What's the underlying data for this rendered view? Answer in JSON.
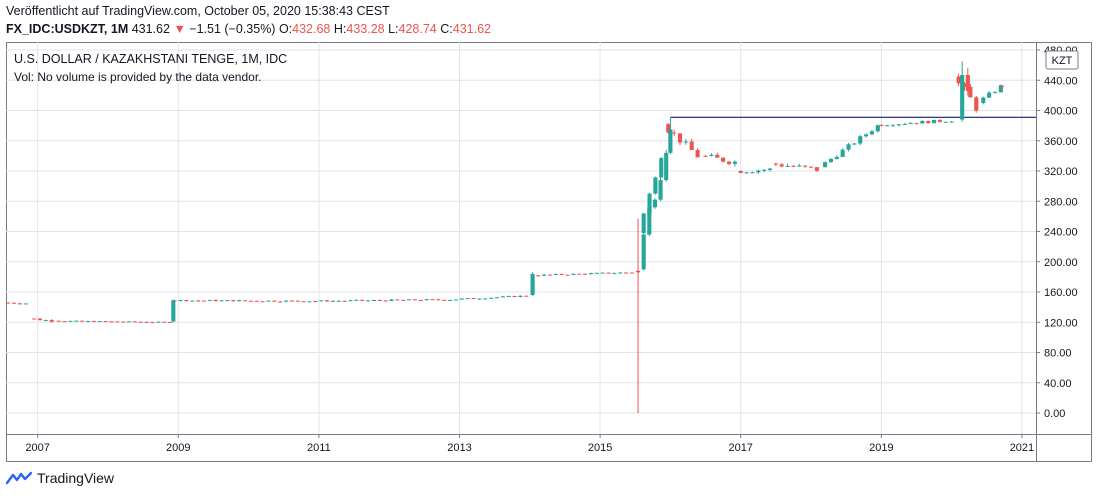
{
  "header": {
    "published": "Veröffentlicht auf TradingView.com, October 05, 2020 15:38:43 CEST",
    "symbol": "FX_IDC:USDKZT, 1M",
    "last": "431.62",
    "change_arrow": "▼",
    "change": "−1.51 (−0.35%)",
    "o_label": "O:",
    "o_value": "432.68",
    "h_label": "H:",
    "h_value": "433.28",
    "l_label": "L:",
    "l_value": "428.74",
    "c_label": "C:",
    "c_value": "431.62"
  },
  "footer": {
    "brand": "TradingView",
    "brand_icon": "tradingview-logo-icon"
  },
  "colors": {
    "up": "#26a69a",
    "down": "#ef5350",
    "line": "#131c6e",
    "grid": "#e1e3eb",
    "text": "#131722"
  },
  "chart_data": {
    "type": "candlestick",
    "title": "U.S. DOLLAR / KAZAKHSTANI TENGE, 1M, IDC",
    "subtitle": "Vol: No volume is provided by the data vendor.",
    "currency": "KZT",
    "x_ticks": [
      "2007",
      "2009",
      "2011",
      "2013",
      "2015",
      "2017",
      "2019",
      "2021"
    ],
    "y_ticks": [
      "0.00",
      "40.00",
      "80.00",
      "120.00",
      "160.00",
      "200.00",
      "240.00",
      "280.00",
      "320.00",
      "360.00",
      "400.00",
      "440.00",
      "480.00"
    ],
    "ylim": [
      0,
      480
    ],
    "xlim": [
      2006.55,
      2021.2
    ],
    "horizontal_line": {
      "value": 391,
      "from": 2016.0
    },
    "segments": [
      {
        "from": 2006.58,
        "to": 2006.95,
        "open": 146,
        "close": 145,
        "amp": 2,
        "step": 1
      },
      {
        "from": 2006.95,
        "to": 2007.3,
        "open": 125,
        "close": 122,
        "amp": 3,
        "step": 1
      },
      {
        "from": 2007.3,
        "to": 2008.95,
        "open": 122,
        "close": 120,
        "amp": 1,
        "step": 1
      },
      {
        "from": 2008.95,
        "to": 2010.95,
        "open": 149,
        "close": 148,
        "amp": 2,
        "step": 1
      },
      {
        "from": 2010.95,
        "to": 2012.95,
        "open": 148,
        "close": 150,
        "amp": 2,
        "step": 1
      },
      {
        "from": 2012.95,
        "to": 2014.04,
        "open": 150,
        "close": 155,
        "amp": 2,
        "step": 1
      },
      {
        "from": 2014.12,
        "to": 2015.55,
        "open": 182,
        "close": 186,
        "amp": 2,
        "step": 1
      },
      {
        "from": 2015.62,
        "to": 2015.97,
        "open": 238,
        "close": 340,
        "amp": 6,
        "step": 1
      },
      {
        "from": 2015.97,
        "to": 2016.5,
        "open": 382,
        "close": 340,
        "amp": 10,
        "step": 1
      },
      {
        "from": 2016.5,
        "to": 2017.0,
        "open": 340,
        "close": 332,
        "amp": 9,
        "step": 1
      },
      {
        "from": 2017.0,
        "to": 2017.5,
        "open": 320,
        "close": 322,
        "amp": 7,
        "step": 1
      },
      {
        "from": 2017.5,
        "to": 2018.2,
        "open": 330,
        "close": 322,
        "amp": 8,
        "step": 1
      },
      {
        "from": 2018.2,
        "to": 2019.0,
        "open": 325,
        "close": 380,
        "amp": 6,
        "step": 1
      },
      {
        "from": 2019.0,
        "to": 2020.1,
        "open": 381,
        "close": 387,
        "amp": 4,
        "step": 1
      },
      {
        "from": 2020.1,
        "to": 2020.45,
        "open": 445,
        "close": 405,
        "amp": 14,
        "step": 1
      },
      {
        "from": 2020.45,
        "to": 2020.8,
        "open": 410,
        "close": 431.62,
        "amp": 6,
        "step": 1
      }
    ],
    "candles": [
      {
        "x": 2008.93,
        "open": 121,
        "high": 150,
        "low": 120,
        "close": 149
      },
      {
        "x": 2014.04,
        "open": 156,
        "high": 186,
        "low": 155,
        "close": 184
      },
      {
        "x": 2015.54,
        "open": 188,
        "high": 257,
        "low": 0,
        "close": 186
      },
      {
        "x": 2015.62,
        "open": 190,
        "high": 238,
        "low": 188,
        "close": 236
      },
      {
        "x": 2015.7,
        "open": 236,
        "high": 282,
        "low": 234,
        "close": 272
      },
      {
        "x": 2015.78,
        "open": 272,
        "high": 284,
        "low": 270,
        "close": 282
      },
      {
        "x": 2015.86,
        "open": 282,
        "high": 312,
        "low": 280,
        "close": 308
      },
      {
        "x": 2015.94,
        "open": 308,
        "high": 348,
        "low": 306,
        "close": 344
      },
      {
        "x": 2016.0,
        "open": 344,
        "high": 391,
        "low": 342,
        "close": 375
      },
      {
        "x": 2020.15,
        "open": 388,
        "high": 465,
        "low": 385,
        "close": 447
      },
      {
        "x": 2020.23,
        "open": 447,
        "high": 456,
        "low": 420,
        "close": 426
      },
      {
        "x": 2020.72,
        "open": 432.68,
        "high": 433.28,
        "low": 428.74,
        "close": 431.62
      }
    ]
  }
}
